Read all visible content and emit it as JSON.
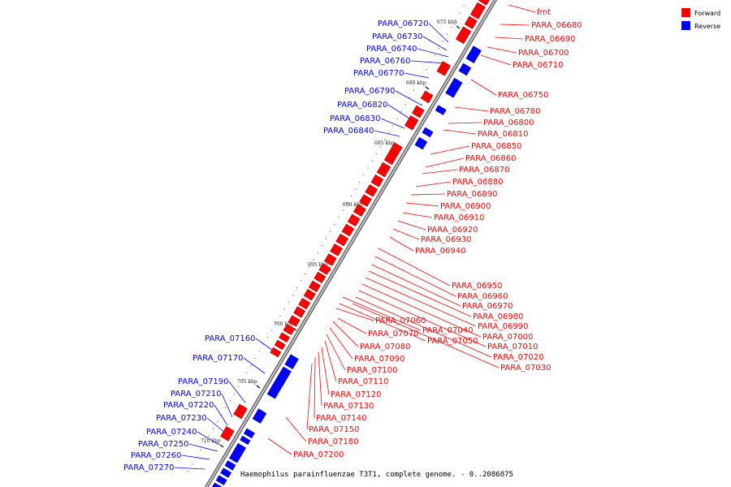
{
  "caption": "Haemophilus parainfluenzae T3T1, complete genome. - 0..2086875",
  "legend": [
    {
      "label": "Forward",
      "color": "#ff0000"
    },
    {
      "label": "Reverse",
      "color": "#0000ff"
    }
  ],
  "colors": {
    "forward": "#ff0000",
    "reverse": "#0000ff",
    "backbone": "#888888"
  },
  "ticks": [
    "675 kbp",
    "680 kbp",
    "685 kbp",
    "690 kbp",
    "695 kbp",
    "700 kbp",
    "705 kbp",
    "710 kbp"
  ],
  "forward_labels": [
    "fmt",
    "PARA_06680",
    "PARA_06690",
    "PARA_06700",
    "PARA_06710",
    "PARA_06750",
    "PARA_06780",
    "PARA_06800",
    "PARA_06810",
    "PARA_06850",
    "PARA_06860",
    "PARA_06870",
    "PARA_06880",
    "PARA_06890",
    "PARA_06900",
    "PARA_06910",
    "PARA_06920",
    "PARA_06930",
    "PARA_06940",
    "PARA_06950",
    "PARA_06960",
    "PARA_06970",
    "PARA_06980",
    "PARA_06990",
    "PARA_07000",
    "PARA_07010",
    "PARA_07020",
    "PARA_07030",
    "PARA_07040",
    "PARA_07050",
    "PARA_07060",
    "PARA_07070",
    "PARA_07080",
    "PARA_07090",
    "PARA_07100",
    "PARA_07110",
    "PARA_07120",
    "PARA_07130",
    "PARA_07140",
    "PARA_07150",
    "PARA_07180",
    "PARA_07200"
  ],
  "reverse_labels": [
    "PARA_06720",
    "PARA_06730",
    "PARA_06740",
    "PARA_06760",
    "PARA_06770",
    "PARA_06790",
    "PARA_06820",
    "PARA_06830",
    "PARA_06840",
    "PARA_07160",
    "PARA_07170",
    "PARA_07190",
    "PARA_07210",
    "PARA_07220",
    "PARA_07230",
    "PARA_07240",
    "PARA_07250",
    "PARA_07260",
    "PARA_07270"
  ]
}
